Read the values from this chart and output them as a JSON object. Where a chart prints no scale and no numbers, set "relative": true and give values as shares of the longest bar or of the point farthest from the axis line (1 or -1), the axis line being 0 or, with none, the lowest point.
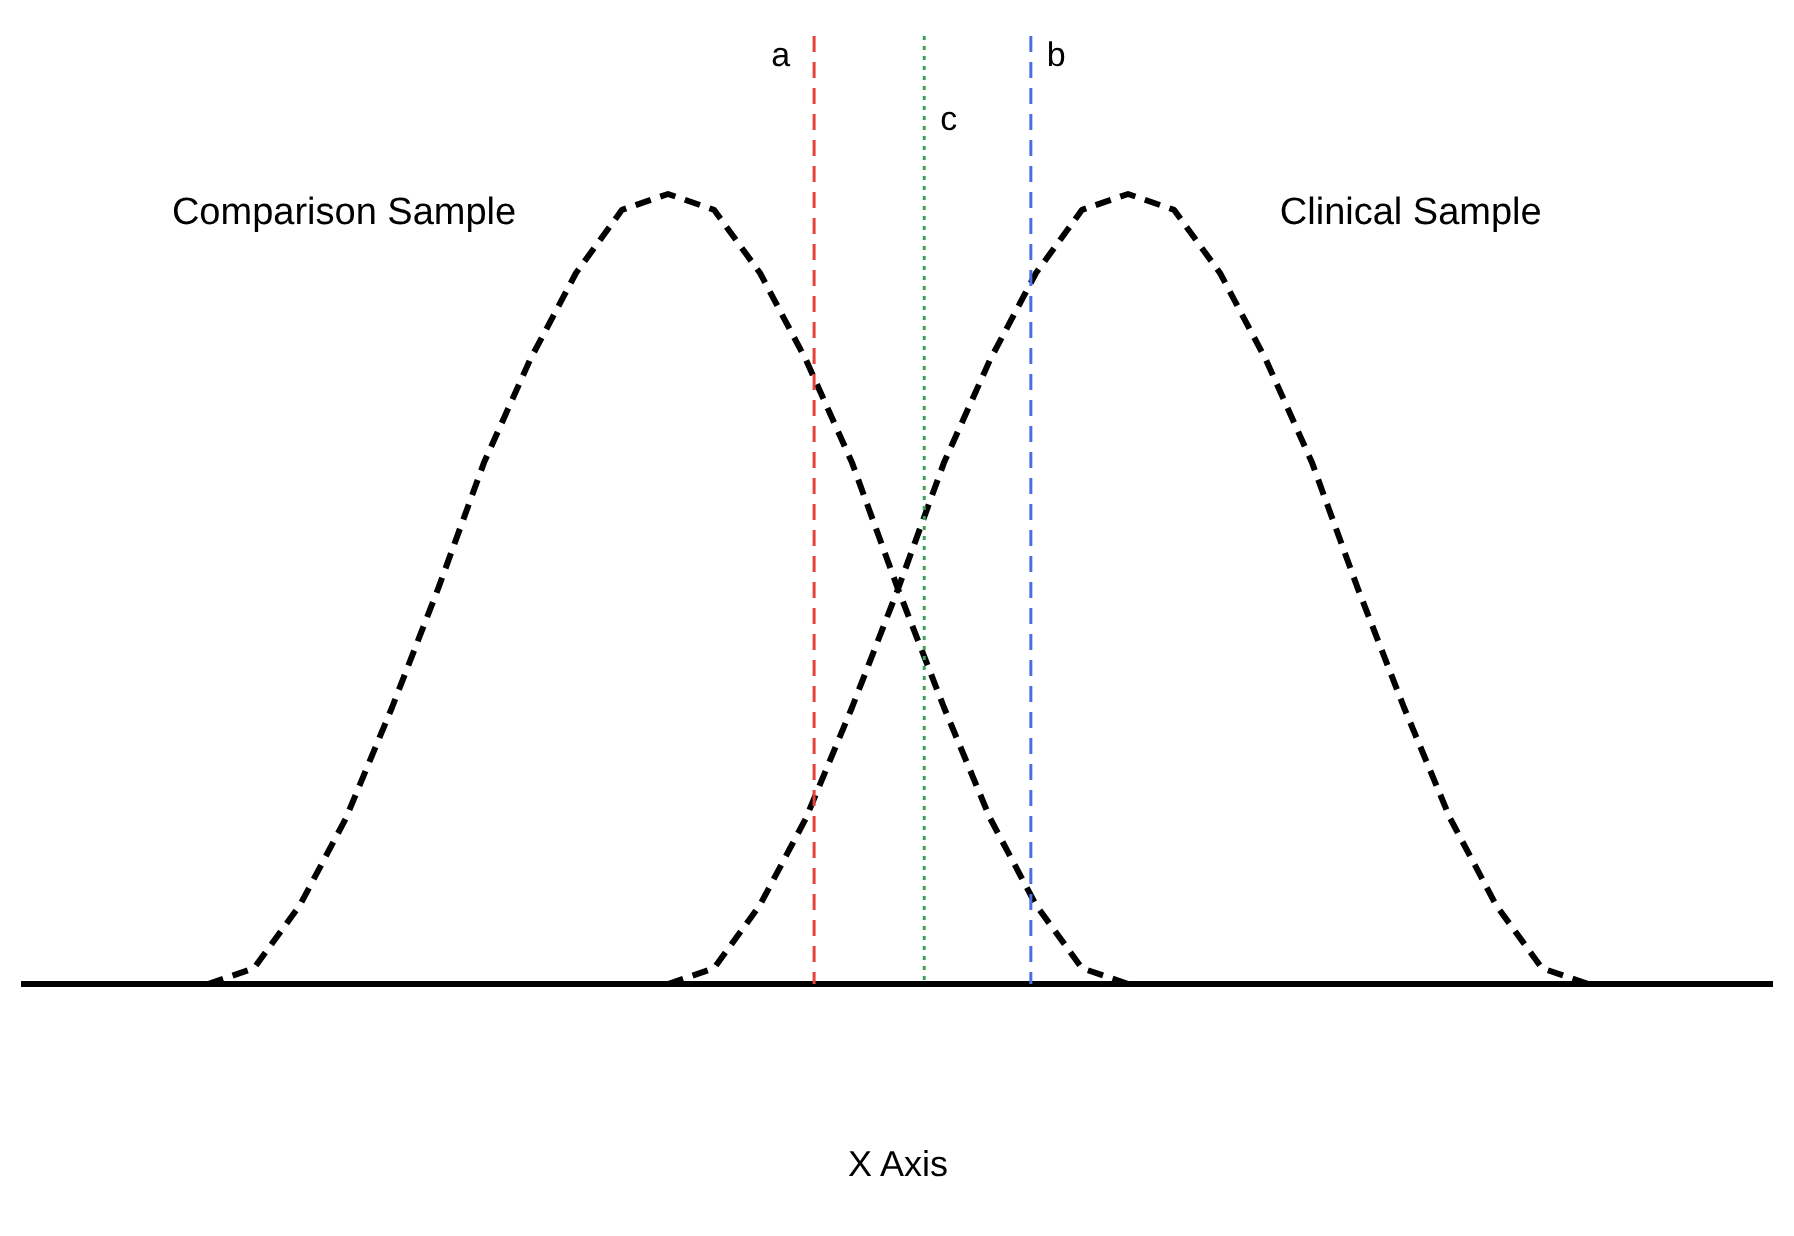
{
  "chart_data": {
    "type": "line",
    "xlabel": "X Axis",
    "relative": true,
    "grid": false,
    "legend": false,
    "marker": "none",
    "line_style": "dashed",
    "annotations": [
      "a",
      "b",
      "c"
    ],
    "categories": [
      null,
      null,
      null,
      null,
      null,
      null,
      null,
      null,
      null,
      null,
      null,
      null,
      null,
      null,
      null,
      null,
      null,
      null,
      null,
      null,
      null,
      null,
      null,
      null,
      null,
      null,
      null,
      null,
      null,
      null,
      null,
      null,
      null,
      null,
      null,
      null,
      null,
      null,
      null
    ],
    "series": [
      {
        "name": "Comparison Sample",
        "color": "#000000",
        "values": [
          null,
          null,
          null,
          null,
          0,
          0.02,
          0.1,
          0.21,
          0.35,
          0.5,
          0.66,
          0.79,
          0.9,
          0.98,
          1,
          0.98,
          0.9,
          0.79,
          0.66,
          0.5,
          0.35,
          0.21,
          0.1,
          0.02,
          0,
          null,
          null,
          null,
          null,
          null,
          null,
          null,
          null,
          null,
          null,
          null,
          null,
          null,
          null
        ]
      },
      {
        "name": "Clinical Sample",
        "color": "#000000",
        "values": [
          null,
          null,
          null,
          null,
          null,
          null,
          null,
          null,
          null,
          null,
          null,
          null,
          null,
          null,
          0,
          0.02,
          0.1,
          0.21,
          0.35,
          0.5,
          0.66,
          0.79,
          0.9,
          0.98,
          1,
          0.98,
          0.9,
          0.79,
          0.66,
          0.5,
          0.35,
          0.21,
          0.1,
          0.02,
          0,
          null,
          null,
          null,
          null
        ]
      }
    ]
  }
}
